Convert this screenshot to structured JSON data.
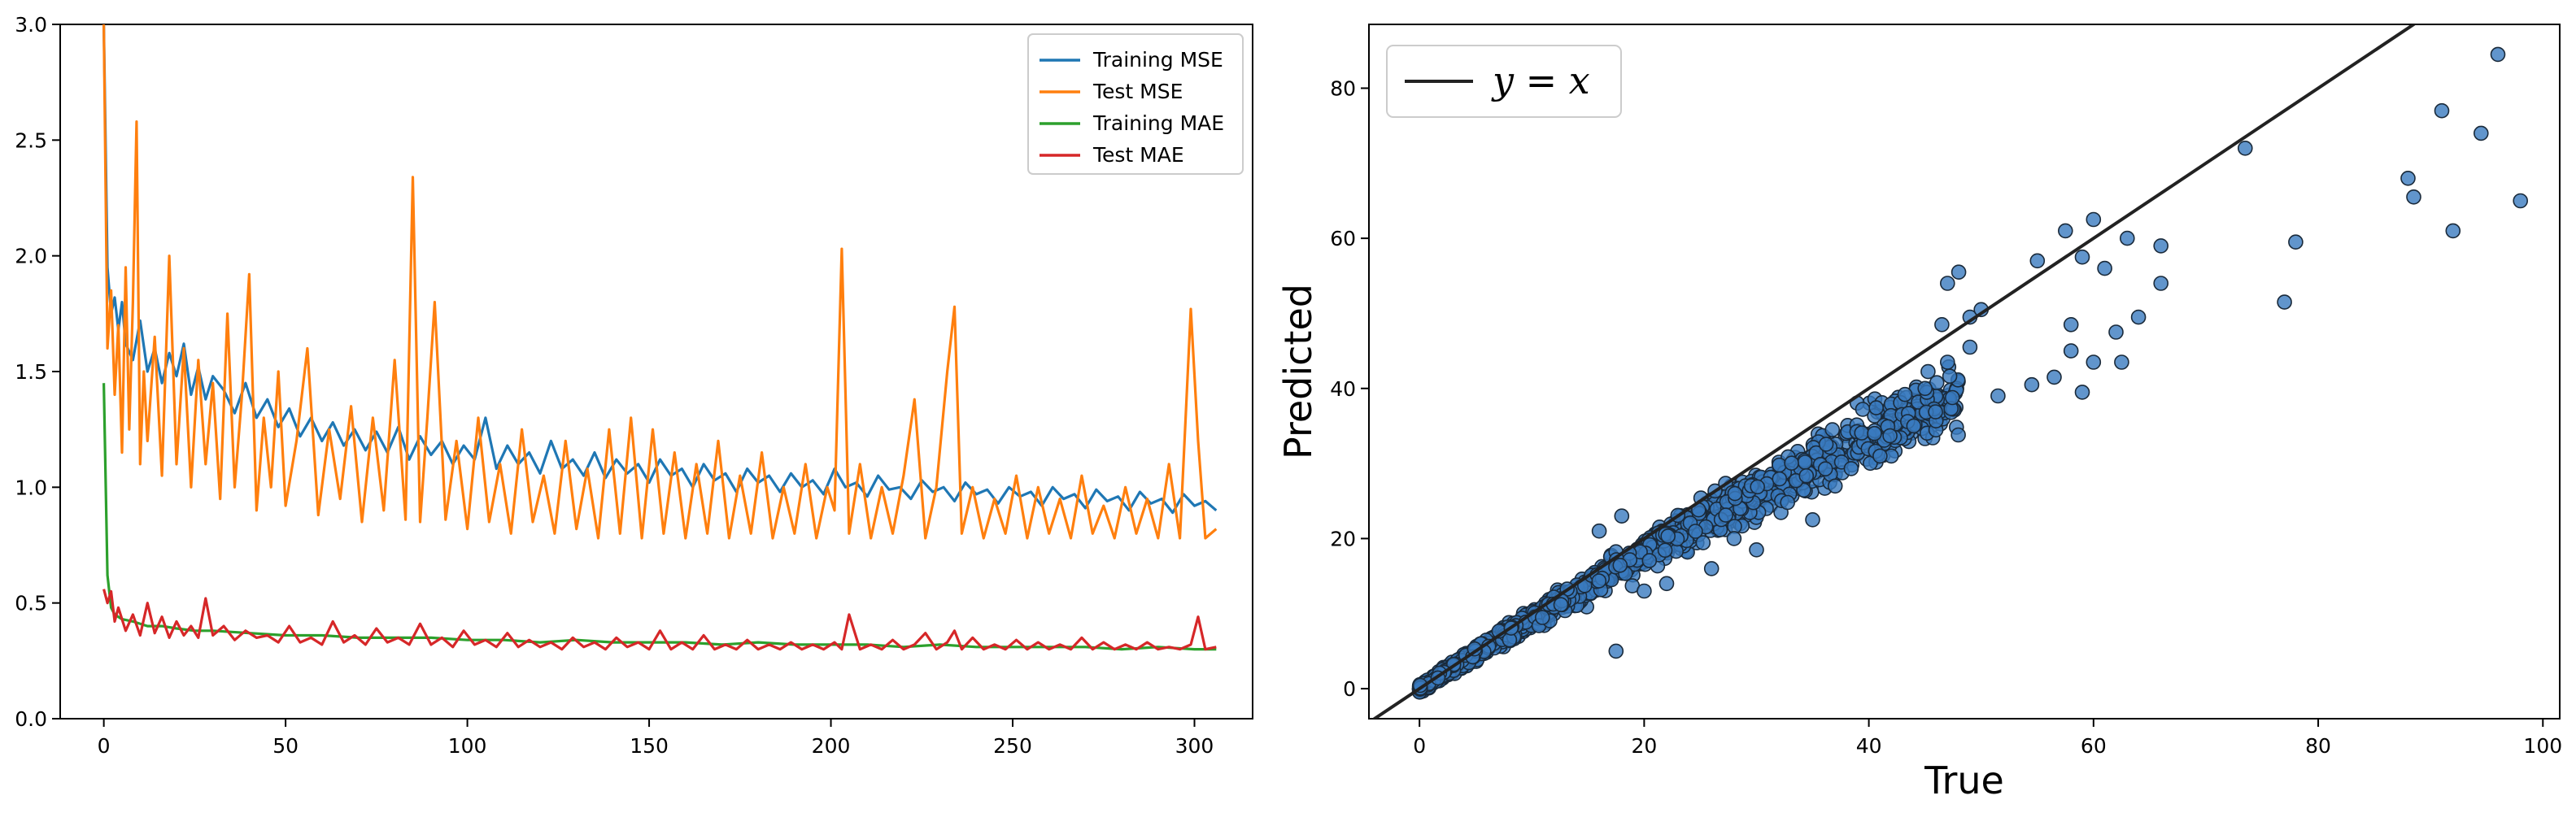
{
  "chart_data": [
    {
      "type": "line",
      "title": "",
      "xlabel": "",
      "ylabel": "",
      "xlim": [
        -12,
        316
      ],
      "ylim": [
        0,
        3.0
      ],
      "xticks": [
        0,
        50,
        100,
        150,
        200,
        250,
        300
      ],
      "yticks": [
        0.0,
        0.5,
        1.0,
        1.5,
        2.0,
        2.5,
        3.0
      ],
      "ytick_labels": [
        "0.0",
        "0.5",
        "1.0",
        "1.5",
        "2.0",
        "2.5",
        "3.0"
      ],
      "grid": false,
      "legend": {
        "placement": "top-right"
      },
      "series": [
        {
          "name": "Training MSE",
          "color": "#1f77b4",
          "x": [
            0,
            1,
            2,
            3,
            4,
            5,
            6,
            8,
            10,
            12,
            14,
            16,
            18,
            20,
            22,
            24,
            26,
            28,
            30,
            33,
            36,
            39,
            42,
            45,
            48,
            51,
            54,
            57,
            60,
            63,
            66,
            69,
            72,
            75,
            78,
            81,
            84,
            87,
            90,
            93,
            96,
            99,
            102,
            105,
            108,
            111,
            114,
            117,
            120,
            123,
            126,
            129,
            132,
            135,
            138,
            141,
            144,
            147,
            150,
            153,
            156,
            159,
            162,
            165,
            168,
            171,
            174,
            177,
            180,
            183,
            186,
            189,
            192,
            195,
            198,
            201,
            204,
            207,
            210,
            213,
            216,
            219,
            222,
            225,
            228,
            231,
            234,
            237,
            240,
            243,
            246,
            249,
            252,
            255,
            258,
            261,
            264,
            267,
            270,
            273,
            276,
            279,
            282,
            285,
            288,
            291,
            294,
            297,
            300,
            303,
            306
          ],
          "values": [
            3.0,
            1.95,
            1.75,
            1.82,
            1.68,
            1.8,
            1.62,
            1.55,
            1.72,
            1.5,
            1.6,
            1.45,
            1.58,
            1.48,
            1.62,
            1.4,
            1.52,
            1.38,
            1.48,
            1.42,
            1.32,
            1.45,
            1.3,
            1.38,
            1.26,
            1.34,
            1.22,
            1.3,
            1.2,
            1.28,
            1.18,
            1.25,
            1.16,
            1.24,
            1.15,
            1.26,
            1.12,
            1.22,
            1.14,
            1.2,
            1.1,
            1.18,
            1.12,
            1.3,
            1.08,
            1.18,
            1.1,
            1.15,
            1.06,
            1.2,
            1.08,
            1.12,
            1.05,
            1.15,
            1.04,
            1.12,
            1.06,
            1.1,
            1.02,
            1.12,
            1.05,
            1.08,
            1.0,
            1.1,
            1.03,
            1.06,
            0.98,
            1.08,
            1.02,
            1.05,
            0.98,
            1.06,
            1.0,
            1.03,
            0.97,
            1.08,
            1.0,
            1.02,
            0.96,
            1.05,
            0.99,
            1.0,
            0.95,
            1.03,
            0.98,
            1.0,
            0.94,
            1.02,
            0.97,
            0.99,
            0.93,
            1.0,
            0.96,
            0.98,
            0.92,
            1.0,
            0.95,
            0.97,
            0.91,
            0.99,
            0.94,
            0.96,
            0.9,
            0.98,
            0.93,
            0.95,
            0.89,
            0.97,
            0.92,
            0.94,
            0.9
          ]
        },
        {
          "name": "Test MSE",
          "color": "#ff7f0e",
          "x": [
            0,
            1,
            2,
            3,
            4,
            5,
            6,
            7,
            8,
            9,
            10,
            11,
            12,
            14,
            16,
            18,
            20,
            22,
            24,
            26,
            28,
            30,
            32,
            34,
            36,
            38,
            40,
            42,
            44,
            46,
            48,
            50,
            53,
            56,
            59,
            62,
            65,
            68,
            71,
            74,
            77,
            80,
            83,
            85,
            87,
            89,
            91,
            94,
            97,
            100,
            103,
            106,
            109,
            112,
            115,
            118,
            121,
            124,
            127,
            130,
            133,
            136,
            139,
            142,
            145,
            148,
            151,
            154,
            157,
            160,
            163,
            166,
            169,
            172,
            175,
            178,
            181,
            184,
            187,
            190,
            193,
            196,
            199,
            201,
            203,
            205,
            208,
            211,
            214,
            217,
            220,
            223,
            226,
            229,
            232,
            234,
            236,
            239,
            242,
            245,
            248,
            251,
            254,
            257,
            260,
            263,
            266,
            269,
            272,
            275,
            278,
            281,
            284,
            287,
            290,
            293,
            296,
            299,
            301,
            303,
            306
          ],
          "values": [
            3.0,
            1.6,
            1.85,
            1.4,
            1.7,
            1.15,
            1.95,
            1.25,
            1.8,
            2.58,
            1.1,
            1.5,
            1.2,
            1.65,
            1.05,
            2.0,
            1.1,
            1.6,
            1.0,
            1.55,
            1.1,
            1.45,
            0.95,
            1.75,
            1.0,
            1.4,
            1.92,
            0.9,
            1.3,
            1.0,
            1.5,
            0.92,
            1.2,
            1.6,
            0.88,
            1.25,
            0.95,
            1.35,
            0.85,
            1.3,
            0.9,
            1.55,
            0.86,
            2.34,
            0.85,
            1.3,
            1.8,
            0.86,
            1.2,
            0.82,
            1.3,
            0.85,
            1.1,
            0.8,
            1.25,
            0.85,
            1.05,
            0.8,
            1.2,
            0.82,
            1.08,
            0.78,
            1.25,
            0.8,
            1.3,
            0.78,
            1.25,
            0.8,
            1.15,
            0.78,
            1.1,
            0.8,
            1.2,
            0.78,
            1.05,
            0.8,
            1.15,
            0.78,
            1.0,
            0.8,
            1.1,
            0.78,
            1.0,
            0.9,
            2.03,
            0.8,
            1.1,
            0.78,
            1.0,
            0.8,
            1.05,
            1.38,
            0.78,
            1.0,
            1.5,
            1.78,
            0.8,
            1.0,
            0.78,
            0.95,
            0.8,
            1.05,
            0.78,
            1.0,
            0.8,
            0.95,
            0.78,
            1.05,
            0.8,
            0.92,
            0.78,
            1.0,
            0.8,
            0.95,
            0.78,
            1.1,
            0.78,
            1.77,
            1.2,
            0.78,
            0.82
          ]
        },
        {
          "name": "Training MAE",
          "color": "#2ca02c",
          "x": [
            0,
            1,
            2,
            3,
            5,
            8,
            12,
            16,
            20,
            25,
            30,
            40,
            50,
            60,
            70,
            80,
            90,
            100,
            110,
            120,
            130,
            140,
            150,
            160,
            170,
            180,
            190,
            200,
            210,
            220,
            230,
            240,
            250,
            260,
            270,
            280,
            290,
            300,
            306
          ],
          "values": [
            1.45,
            0.62,
            0.48,
            0.45,
            0.43,
            0.42,
            0.4,
            0.4,
            0.39,
            0.38,
            0.38,
            0.37,
            0.36,
            0.36,
            0.35,
            0.35,
            0.35,
            0.34,
            0.34,
            0.33,
            0.34,
            0.33,
            0.33,
            0.33,
            0.32,
            0.33,
            0.32,
            0.32,
            0.32,
            0.31,
            0.32,
            0.31,
            0.31,
            0.31,
            0.31,
            0.3,
            0.31,
            0.3,
            0.3
          ]
        },
        {
          "name": "Test MAE",
          "color": "#d62728",
          "x": [
            0,
            1,
            2,
            3,
            4,
            6,
            8,
            10,
            12,
            14,
            16,
            18,
            20,
            22,
            24,
            26,
            28,
            30,
            33,
            36,
            39,
            42,
            45,
            48,
            51,
            54,
            57,
            60,
            63,
            66,
            69,
            72,
            75,
            78,
            81,
            84,
            87,
            90,
            93,
            96,
            99,
            102,
            105,
            108,
            111,
            114,
            117,
            120,
            123,
            126,
            129,
            132,
            135,
            138,
            141,
            144,
            147,
            150,
            153,
            156,
            159,
            162,
            165,
            168,
            171,
            174,
            177,
            180,
            183,
            186,
            189,
            192,
            195,
            198,
            201,
            203,
            205,
            208,
            211,
            214,
            217,
            220,
            223,
            226,
            229,
            232,
            234,
            236,
            239,
            242,
            245,
            248,
            251,
            254,
            257,
            260,
            263,
            266,
            269,
            272,
            275,
            278,
            281,
            284,
            287,
            290,
            293,
            296,
            299,
            301,
            303,
            306
          ],
          "values": [
            0.56,
            0.5,
            0.55,
            0.42,
            0.48,
            0.38,
            0.45,
            0.36,
            0.5,
            0.37,
            0.44,
            0.35,
            0.42,
            0.36,
            0.4,
            0.35,
            0.52,
            0.36,
            0.4,
            0.34,
            0.38,
            0.35,
            0.36,
            0.33,
            0.4,
            0.33,
            0.35,
            0.32,
            0.42,
            0.33,
            0.36,
            0.32,
            0.39,
            0.33,
            0.35,
            0.32,
            0.41,
            0.32,
            0.35,
            0.31,
            0.38,
            0.32,
            0.34,
            0.31,
            0.37,
            0.31,
            0.34,
            0.31,
            0.33,
            0.3,
            0.35,
            0.31,
            0.33,
            0.3,
            0.35,
            0.31,
            0.33,
            0.3,
            0.38,
            0.3,
            0.33,
            0.3,
            0.36,
            0.3,
            0.32,
            0.3,
            0.34,
            0.3,
            0.32,
            0.3,
            0.33,
            0.3,
            0.32,
            0.3,
            0.33,
            0.3,
            0.45,
            0.3,
            0.32,
            0.3,
            0.34,
            0.3,
            0.32,
            0.37,
            0.3,
            0.33,
            0.38,
            0.3,
            0.35,
            0.3,
            0.32,
            0.3,
            0.34,
            0.3,
            0.33,
            0.3,
            0.32,
            0.3,
            0.35,
            0.3,
            0.33,
            0.3,
            0.32,
            0.3,
            0.33,
            0.3,
            0.31,
            0.3,
            0.32,
            0.44,
            0.3,
            0.31
          ]
        }
      ]
    },
    {
      "type": "scatter",
      "title": "",
      "xlabel": "True",
      "ylabel": "Predicted",
      "xlim": [
        -4.5,
        101.5
      ],
      "ylim": [
        -4.0,
        88.5
      ],
      "xticks": [
        0,
        20,
        40,
        60,
        80,
        100
      ],
      "yticks": [
        0,
        20,
        40,
        60,
        80
      ],
      "grid": false,
      "legend": {
        "placement": "top-left",
        "entries": [
          {
            "label": "y = x",
            "label_var": "y",
            "label_op": " = ",
            "label_rhs": "x",
            "color": "#222222"
          }
        ]
      },
      "reference_line": {
        "label": "y = x",
        "slope": 1,
        "intercept": 0,
        "color": "#222222"
      },
      "marker_color": "#3a7bbf",
      "marker_edge": "#1a2a3a",
      "points_pattern": "dense cluster along y = x for True in 0–40 with spread growing with True; sparse outliers listed",
      "outliers": [
        [
          17.5,
          5
        ],
        [
          73.5,
          72
        ],
        [
          77,
          51.5
        ],
        [
          78,
          59.5
        ],
        [
          88,
          68
        ],
        [
          88.5,
          65.5
        ],
        [
          91,
          77
        ],
        [
          92,
          61
        ],
        [
          94.5,
          74
        ],
        [
          96,
          84.5
        ],
        [
          98,
          65
        ],
        [
          60,
          62.5
        ],
        [
          57.5,
          61
        ],
        [
          63,
          60
        ],
        [
          55,
          57
        ],
        [
          59,
          57.5
        ],
        [
          66,
          59
        ],
        [
          66,
          54
        ],
        [
          61,
          56
        ],
        [
          64,
          49.5
        ],
        [
          58,
          48.5
        ],
        [
          62,
          47.5
        ],
        [
          58,
          45
        ],
        [
          60,
          43.5
        ],
        [
          62.5,
          43.5
        ],
        [
          54.5,
          40.5
        ],
        [
          59,
          39.5
        ],
        [
          56.5,
          41.5
        ],
        [
          51.5,
          39
        ],
        [
          48,
          55.5
        ],
        [
          47,
          54
        ],
        [
          49,
          49.5
        ],
        [
          46.5,
          48.5
        ],
        [
          50,
          50.5
        ],
        [
          49,
          45.5
        ],
        [
          47,
          43.5
        ],
        [
          45,
          40
        ],
        [
          44,
          35
        ],
        [
          42,
          31
        ],
        [
          41,
          31
        ],
        [
          40.5,
          34
        ],
        [
          37,
          27
        ],
        [
          35,
          22.5
        ],
        [
          30,
          18.5
        ],
        [
          28,
          20
        ],
        [
          26,
          16
        ],
        [
          18,
          23
        ],
        [
          16,
          21
        ],
        [
          22,
          14
        ],
        [
          20,
          13
        ]
      ]
    }
  ]
}
